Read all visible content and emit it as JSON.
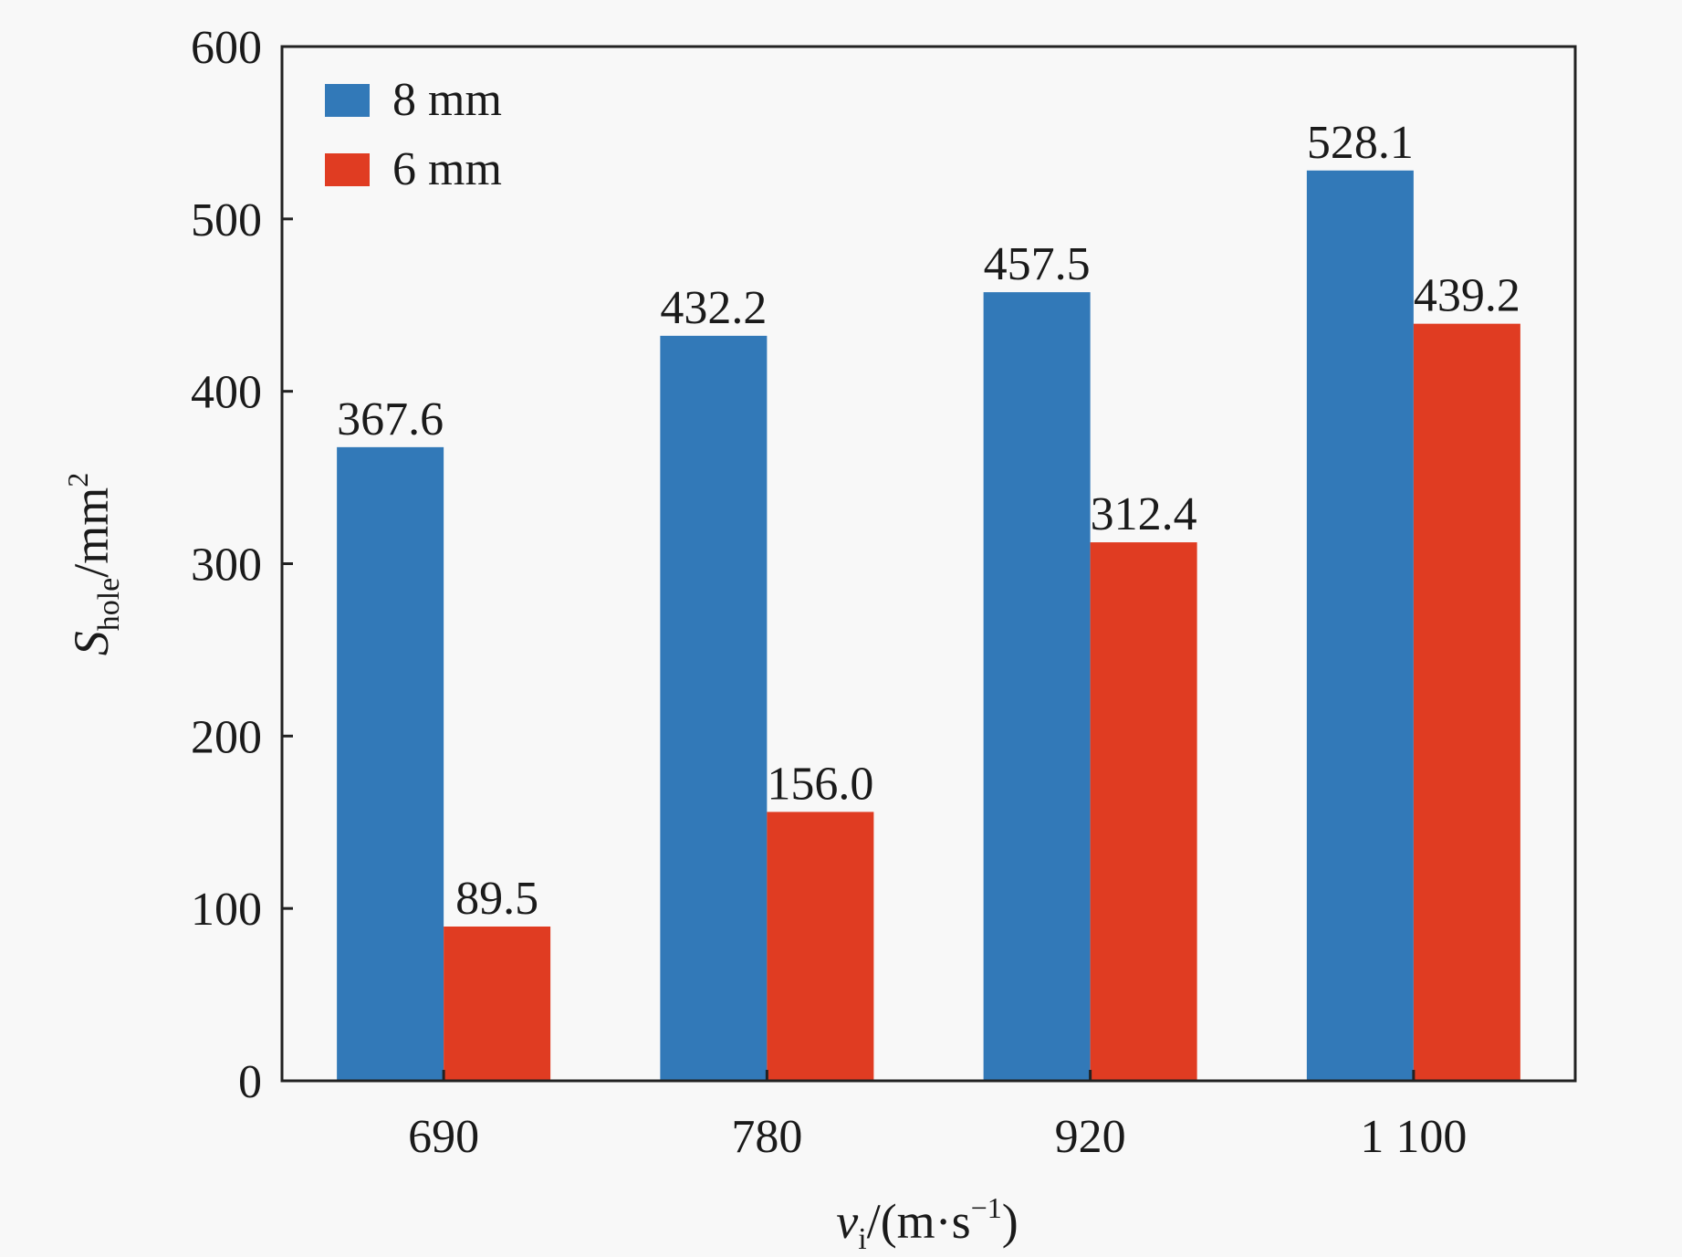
{
  "chart_data": {
    "type": "bar",
    "title": "",
    "xlabel": "v_i/(m·s^-1)",
    "xlabel_parts": {
      "main": "v",
      "sub": "i",
      "rest": "/(m·s",
      "sup": "−1",
      "close": ")"
    },
    "ylabel": "S_hole/mm^2",
    "ylabel_parts": {
      "main": "S",
      "sub": "hole",
      "rest": "/mm",
      "sup": "2"
    },
    "categories": [
      "690",
      "780",
      "920",
      "1 100"
    ],
    "ylim": [
      0,
      600
    ],
    "yticks": [
      0,
      100,
      200,
      300,
      400,
      500,
      600
    ],
    "grid": false,
    "legend_position": "top-left",
    "series": [
      {
        "name": "8 mm",
        "color": "#3279b8",
        "values": [
          367.6,
          432.2,
          457.5,
          528.1
        ],
        "labels": [
          "367.6",
          "432.2",
          "457.5",
          "528.1"
        ]
      },
      {
        "name": "6 mm",
        "color": "#e03c22",
        "values": [
          89.5,
          156.0,
          312.4,
          439.2
        ],
        "labels": [
          "89.5",
          "156.0",
          "312.4",
          "439.2"
        ]
      }
    ]
  }
}
